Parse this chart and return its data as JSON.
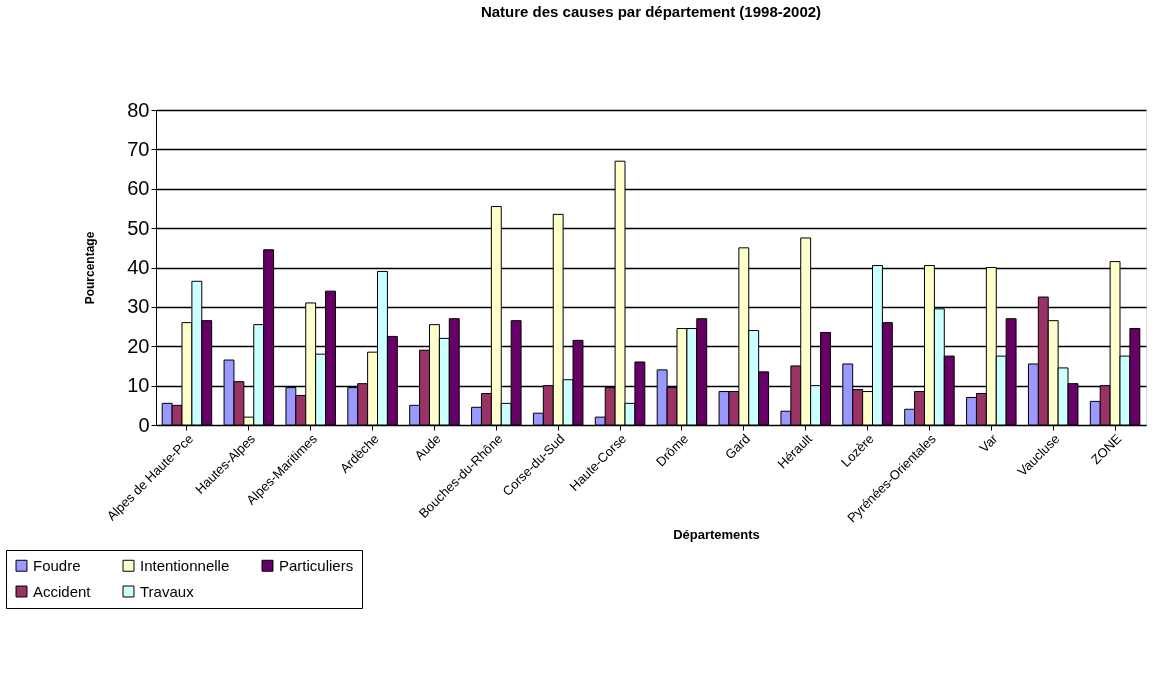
{
  "chart_data": {
    "type": "bar",
    "title": "Nature des causes par département (1998-2002)",
    "xlabel": "Départements",
    "ylabel": "Pourcentage",
    "categories": [
      "Alpes de Haute-Pce",
      "Hautes-Alpes",
      "Alpes-Maritimes",
      "Ardèche",
      "Aude",
      "Bouches-du-Rhône",
      "Corse-du-Sud",
      "Haute-Corse",
      "Drôme",
      "Gard",
      "Hérault",
      "Lozère",
      "Pyrénées-Orientales",
      "Var",
      "Vaucluse",
      "ZONE"
    ],
    "series": [
      {
        "name": "Foudre",
        "color": "#9999ff",
        "values": [
          5.5,
          16.5,
          9.5,
          9.5,
          5,
          4.5,
          3,
          2,
          14,
          8.5,
          3.5,
          15.5,
          4,
          7,
          15.5,
          6
        ]
      },
      {
        "name": "Accident",
        "color": "#993366",
        "values": [
          5,
          11,
          7.5,
          10.5,
          19,
          8,
          10,
          9.5,
          9.5,
          8.5,
          15,
          9,
          8.5,
          8,
          32.5,
          10
        ]
      },
      {
        "name": "Intentionnelle",
        "color": "#ffffcc",
        "values": [
          26,
          2,
          31,
          18.5,
          25.5,
          55.5,
          53.5,
          67,
          24.5,
          45,
          47.5,
          8.5,
          40.5,
          40,
          26.5,
          41.5
        ]
      },
      {
        "name": "Travaux",
        "color": "#ccffff",
        "values": [
          36.5,
          25.5,
          18,
          39,
          22,
          5.5,
          11.5,
          5.5,
          24.5,
          24,
          10,
          40.5,
          29.5,
          17.5,
          14.5,
          17.5
        ]
      },
      {
        "name": "Particuliers",
        "color": "#660066",
        "values": [
          26.5,
          44.5,
          34,
          22.5,
          27,
          26.5,
          21.5,
          16,
          27,
          13.5,
          23.5,
          26,
          17.5,
          27,
          10.5,
          24.5
        ]
      }
    ],
    "ylim": [
      0,
      80
    ],
    "yticks": [
      0,
      10,
      20,
      30,
      40,
      50,
      60,
      70,
      80
    ],
    "grid": "y",
    "legend": "bottom left"
  }
}
